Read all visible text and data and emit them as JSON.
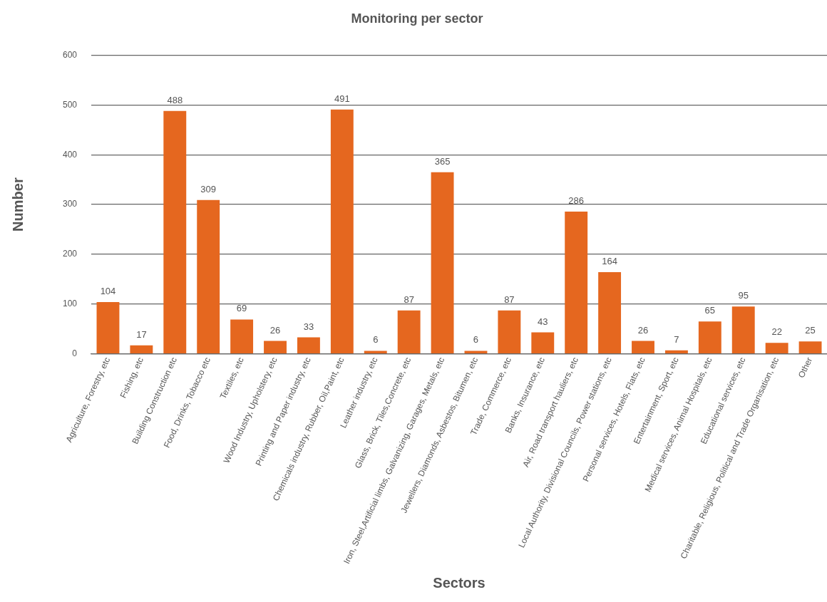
{
  "chart_data": {
    "type": "bar",
    "title": "Monitoring per sector",
    "xlabel": "Sectors",
    "ylabel": "Number",
    "categories": [
      "Agriculture, Forestry, etc",
      "Fishing, etc",
      "Building Construction etc",
      "Food, Drinks, Tobacco etc",
      "Textiles, etc",
      "Wood Industry, Upholstery, etc",
      "Printing and Paper industry, etc",
      "Chemicals industry, Rubber, Oil,Paint, etc",
      "Leather industry, etc",
      "Glass, Brick, Tiles,Concrete, etc",
      "Iron, Steel,Artificial limbs, Galvanizing, Garages, Metals, etc",
      "Jewellers, Diamonds, Asbestos, Bitumen, etc",
      "Trade, Commerce, etc",
      "Banks, Insurance, etc",
      "Air, Road transport hauliers, etc",
      "Local Authority, Divisional Councils, Power stations, etc",
      "Personal services, Hotels, Flats, etc",
      "Entertainment, Sport, etc",
      "Medical services, Animal Hospitals, etc",
      "Educational services, etc",
      "Charitable, Religious, Political and Trade Organisation, etc",
      "Other"
    ],
    "values": [
      104,
      17,
      488,
      309,
      69,
      26,
      33,
      491,
      6,
      87,
      365,
      6,
      87,
      43,
      286,
      164,
      26,
      7,
      65,
      95,
      22,
      25
    ],
    "data_labels": true,
    "color": "#e5671f",
    "ylim": [
      0,
      600
    ],
    "yticks": [
      0,
      100,
      200,
      300,
      400,
      500,
      600
    ],
    "grid": "y"
  }
}
